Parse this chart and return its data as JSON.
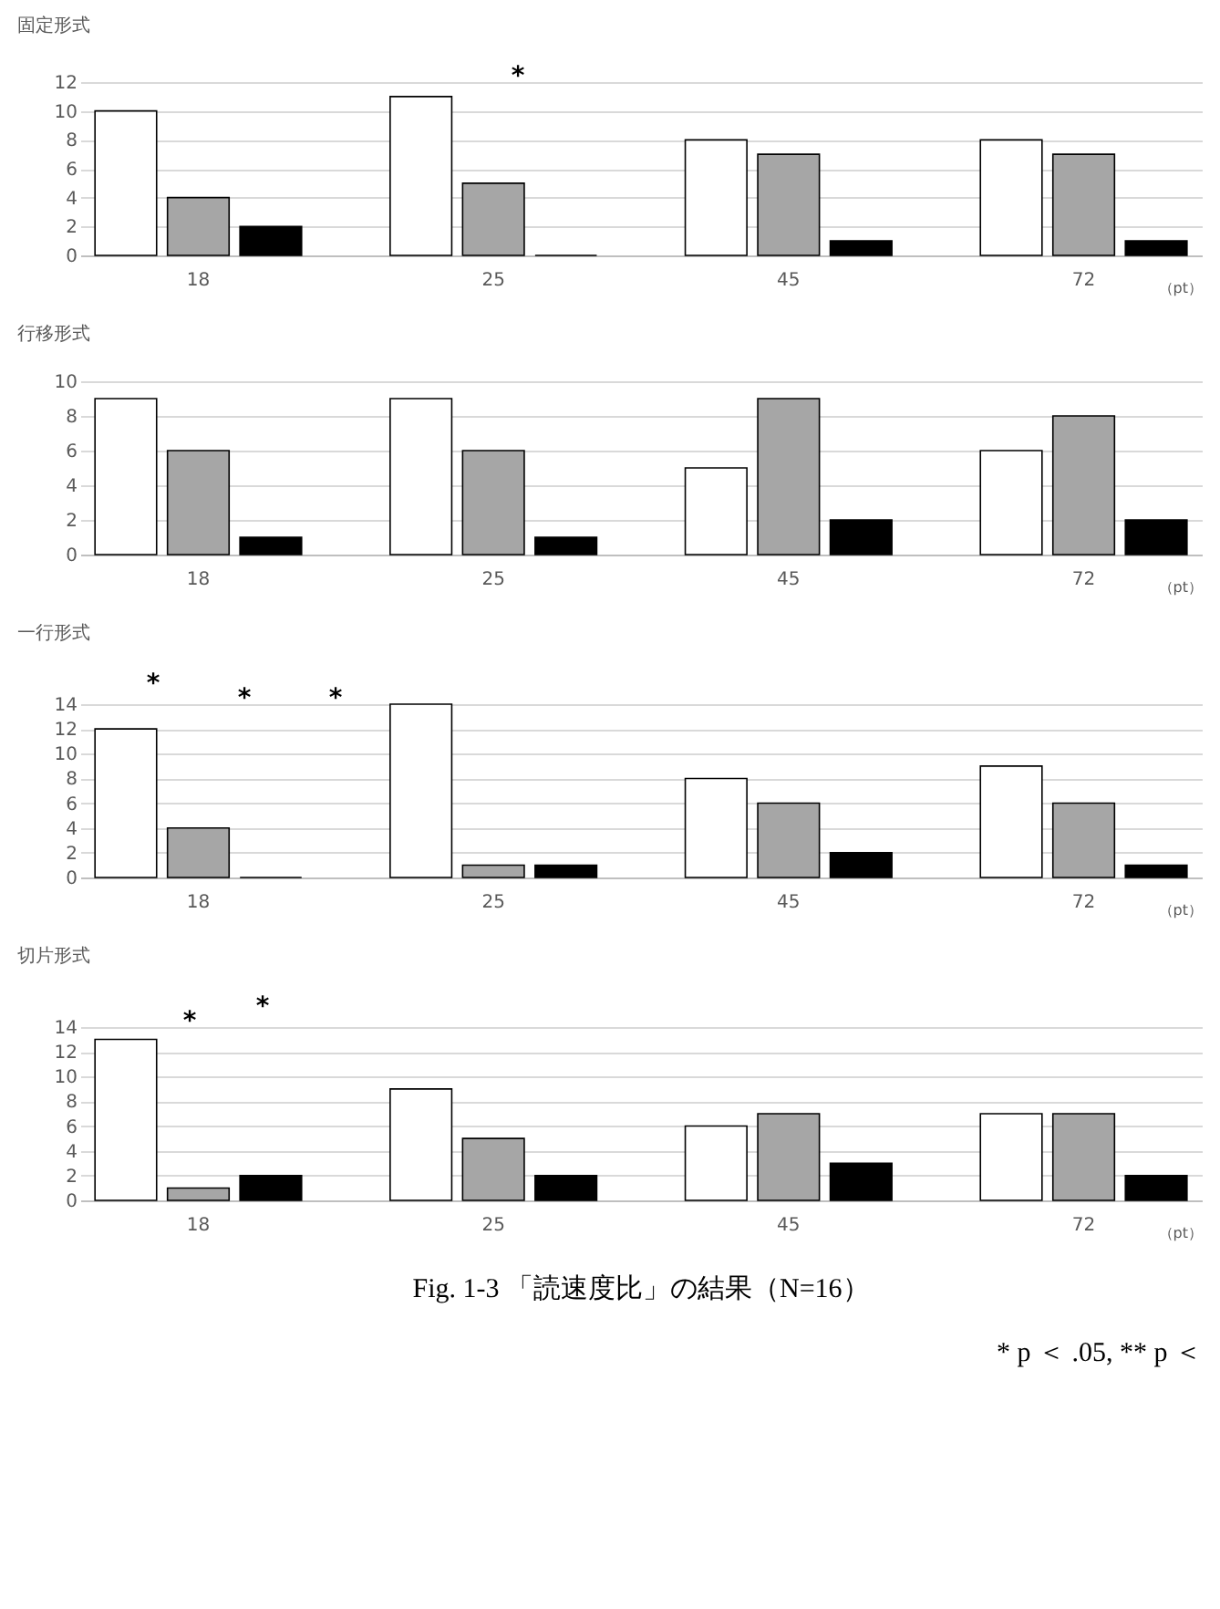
{
  "chart_data": [
    {
      "type": "bar",
      "title": "固定形式",
      "xlabel": "（pt）",
      "categories": [
        "18",
        "25",
        "45",
        "72"
      ],
      "ylim": [
        0,
        12
      ],
      "yticks": [
        0,
        2,
        4,
        6,
        8,
        10,
        12
      ],
      "grid": "y",
      "annotations": [
        "*"
      ],
      "series": [
        {
          "color": "#ffffff",
          "values": [
            10,
            11,
            8,
            8
          ]
        },
        {
          "color": "#a6a6a6",
          "values": [
            4,
            5,
            7,
            7
          ]
        },
        {
          "color": "#000000",
          "values": [
            2,
            0,
            1,
            1
          ]
        }
      ]
    },
    {
      "type": "bar",
      "title": "行移形式",
      "xlabel": "（pt）",
      "categories": [
        "18",
        "25",
        "45",
        "72"
      ],
      "ylim": [
        0,
        10
      ],
      "yticks": [
        0,
        2,
        4,
        6,
        8,
        10
      ],
      "grid": "y",
      "series": [
        {
          "color": "#ffffff",
          "values": [
            9,
            9,
            5,
            6
          ]
        },
        {
          "color": "#a6a6a6",
          "values": [
            6,
            6,
            9,
            8
          ]
        },
        {
          "color": "#000000",
          "values": [
            1,
            1,
            2,
            2
          ]
        }
      ]
    },
    {
      "type": "bar",
      "title": "一行形式",
      "xlabel": "（pt）",
      "categories": [
        "18",
        "25",
        "45",
        "72"
      ],
      "ylim": [
        0,
        14
      ],
      "yticks": [
        0,
        2,
        4,
        6,
        8,
        10,
        12,
        14
      ],
      "grid": "y",
      "annotations": [
        "*",
        "*",
        "*"
      ],
      "series": [
        {
          "color": "#ffffff",
          "values": [
            12,
            14,
            8,
            9
          ]
        },
        {
          "color": "#a6a6a6",
          "values": [
            4,
            1,
            6,
            6
          ]
        },
        {
          "color": "#000000",
          "values": [
            0,
            1,
            2,
            1
          ]
        }
      ]
    },
    {
      "type": "bar",
      "title": "切片形式",
      "xlabel": "（pt）",
      "categories": [
        "18",
        "25",
        "45",
        "72"
      ],
      "ylim": [
        0,
        14
      ],
      "yticks": [
        0,
        2,
        4,
        6,
        8,
        10,
        12,
        14
      ],
      "grid": "y",
      "annotations": [
        "*",
        "*"
      ],
      "series": [
        {
          "color": "#ffffff",
          "values": [
            13,
            9,
            6,
            7
          ]
        },
        {
          "color": "#a6a6a6",
          "values": [
            1,
            5,
            7,
            7
          ]
        },
        {
          "color": "#000000",
          "values": [
            2,
            2,
            3,
            2
          ]
        }
      ]
    },
    {
      "type": "other",
      "title": "Fig. 1-3 「読速度比」の結果（N=16）",
      "annotations": [
        "* p ＜ .05, ** p ＜"
      ]
    }
  ]
}
